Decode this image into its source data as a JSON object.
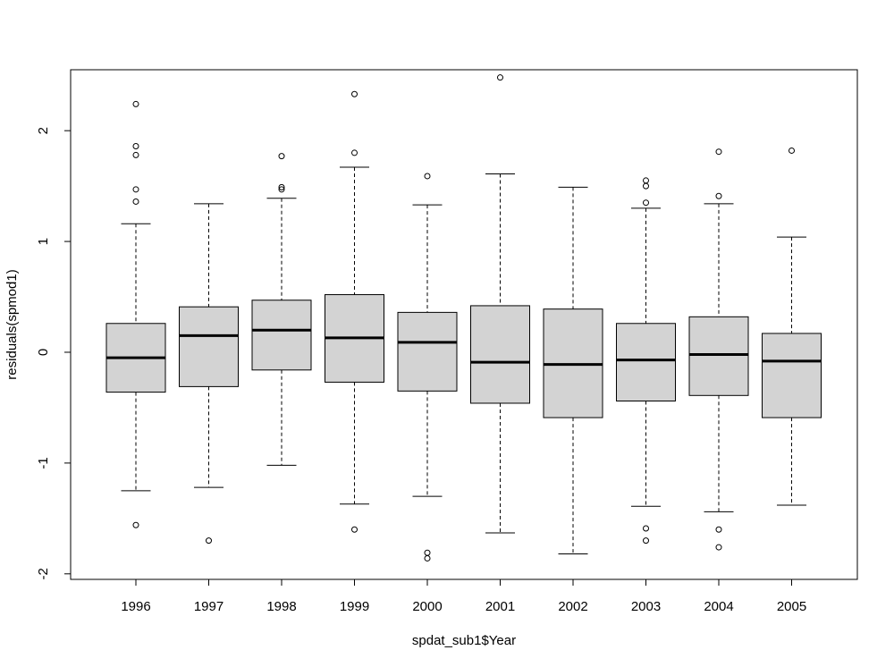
{
  "chart_data": {
    "type": "boxplot",
    "title": "",
    "xlabel": "spdat_sub1$Year",
    "ylabel": "residuals(spmod1)",
    "ylim": [
      -2.05,
      2.55
    ],
    "yticks": [
      -2,
      -1,
      0,
      1,
      2
    ],
    "grid": false,
    "colors": {
      "box_fill": "#d3d3d3",
      "stroke": "#000000",
      "background": "#ffffff"
    },
    "categories": [
      "1996",
      "1997",
      "1998",
      "1999",
      "2000",
      "2001",
      "2002",
      "2003",
      "2004",
      "2005"
    ],
    "boxes": [
      {
        "category": "1996",
        "whisker_low": -1.25,
        "q1": -0.36,
        "median": -0.05,
        "q3": 0.26,
        "whisker_high": 1.16,
        "outliers": [
          2.24,
          1.86,
          1.78,
          1.47,
          1.36,
          -1.56
        ]
      },
      {
        "category": "1997",
        "whisker_low": -1.22,
        "q1": -0.31,
        "median": 0.15,
        "q3": 0.41,
        "whisker_high": 1.34,
        "outliers": [
          -1.7
        ]
      },
      {
        "category": "1998",
        "whisker_low": -1.02,
        "q1": -0.16,
        "median": 0.2,
        "q3": 0.47,
        "whisker_high": 1.39,
        "outliers": [
          1.77,
          1.49,
          1.47
        ]
      },
      {
        "category": "1999",
        "whisker_low": -1.37,
        "q1": -0.27,
        "median": 0.13,
        "q3": 0.52,
        "whisker_high": 1.67,
        "outliers": [
          2.33,
          1.8,
          -1.6
        ]
      },
      {
        "category": "2000",
        "whisker_low": -1.3,
        "q1": -0.35,
        "median": 0.09,
        "q3": 0.36,
        "whisker_high": 1.33,
        "outliers": [
          1.59,
          -1.81,
          -1.86
        ]
      },
      {
        "category": "2001",
        "whisker_low": -1.63,
        "q1": -0.46,
        "median": -0.09,
        "q3": 0.42,
        "whisker_high": 1.61,
        "outliers": [
          2.48
        ]
      },
      {
        "category": "2002",
        "whisker_low": -1.82,
        "q1": -0.59,
        "median": -0.11,
        "q3": 0.39,
        "whisker_high": 1.49,
        "outliers": []
      },
      {
        "category": "2003",
        "whisker_low": -1.39,
        "q1": -0.44,
        "median": -0.07,
        "q3": 0.26,
        "whisker_high": 1.3,
        "outliers": [
          1.55,
          1.5,
          1.35,
          -1.59,
          -1.7
        ]
      },
      {
        "category": "2004",
        "whisker_low": -1.44,
        "q1": -0.39,
        "median": -0.02,
        "q3": 0.32,
        "whisker_high": 1.34,
        "outliers": [
          1.81,
          1.41,
          -1.6,
          -1.76
        ]
      },
      {
        "category": "2005",
        "whisker_low": -1.38,
        "q1": -0.59,
        "median": -0.08,
        "q3": 0.17,
        "whisker_high": 1.04,
        "outliers": [
          1.82
        ]
      }
    ]
  }
}
